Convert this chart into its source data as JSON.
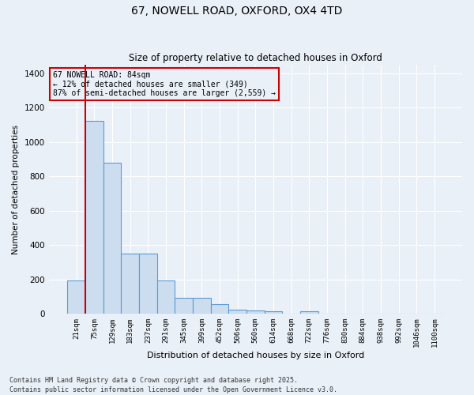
{
  "title_line1": "67, NOWELL ROAD, OXFORD, OX4 4TD",
  "title_line2": "Size of property relative to detached houses in Oxford",
  "xlabel": "Distribution of detached houses by size in Oxford",
  "ylabel": "Number of detached properties",
  "bar_labels": [
    "21sqm",
    "75sqm",
    "129sqm",
    "183sqm",
    "237sqm",
    "291sqm",
    "345sqm",
    "399sqm",
    "452sqm",
    "506sqm",
    "560sqm",
    "614sqm",
    "668sqm",
    "722sqm",
    "776sqm",
    "830sqm",
    "884sqm",
    "938sqm",
    "992sqm",
    "1046sqm",
    "1100sqm"
  ],
  "bar_values": [
    195,
    1125,
    880,
    350,
    350,
    195,
    90,
    90,
    55,
    25,
    20,
    15,
    0,
    12,
    0,
    0,
    0,
    0,
    0,
    0,
    0
  ],
  "bar_color": "#ccddf0",
  "bar_edge_color": "#5b9bd5",
  "vline_color": "#cc0000",
  "annotation_title": "67 NOWELL ROAD: 84sqm",
  "annotation_line1": "← 12% of detached houses are smaller (349)",
  "annotation_line2": "87% of semi-detached houses are larger (2,559) →",
  "annotation_box_color": "#cc0000",
  "ylim": [
    0,
    1450
  ],
  "yticks": [
    0,
    200,
    400,
    600,
    800,
    1000,
    1200,
    1400
  ],
  "footer_line1": "Contains HM Land Registry data © Crown copyright and database right 2025.",
  "footer_line2": "Contains public sector information licensed under the Open Government Licence v3.0.",
  "bg_color": "#eaf0f8",
  "grid_color": "#ffffff"
}
